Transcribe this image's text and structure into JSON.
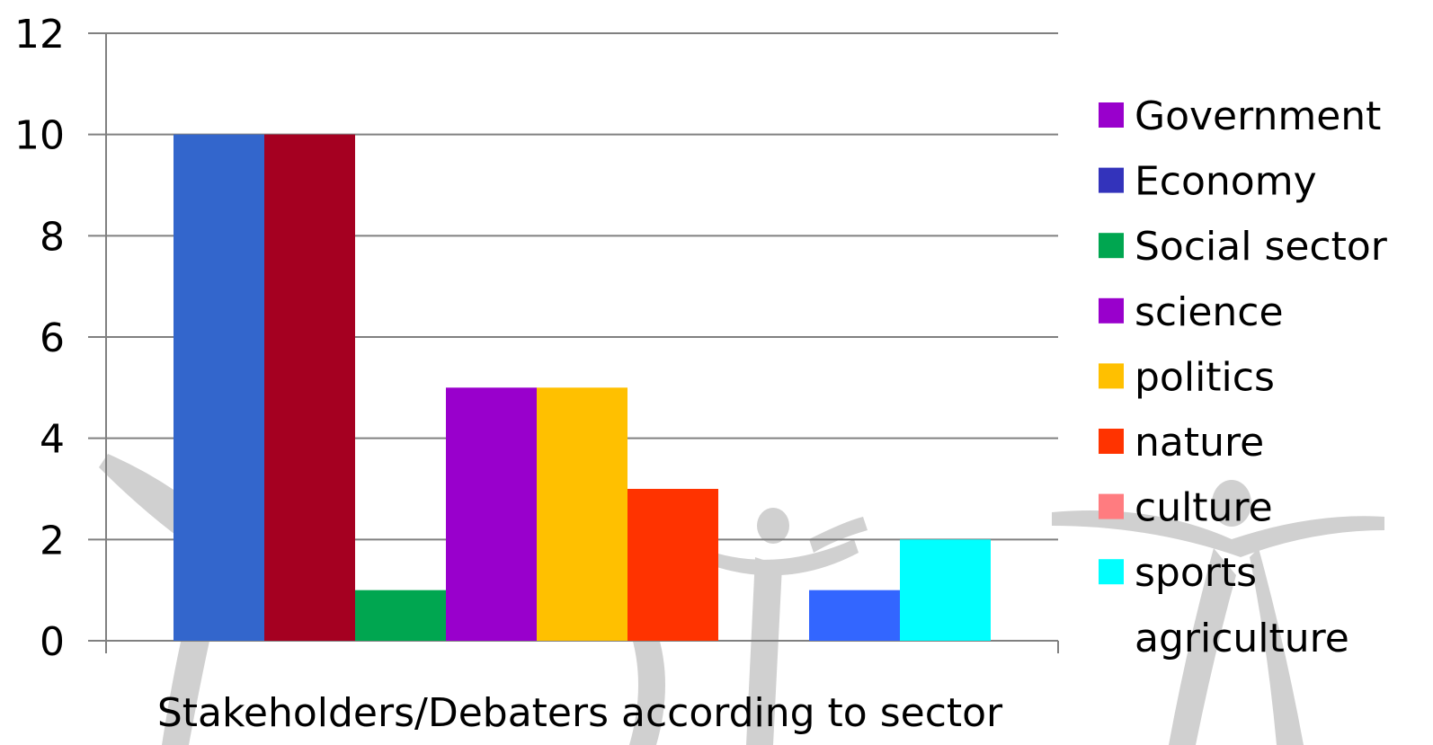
{
  "chart_data": {
    "type": "bar",
    "xlabel": "Stakeholders/Debaters according to sector",
    "ylabel": "",
    "ylim": [
      0,
      12
    ],
    "yticks": [
      0,
      2,
      4,
      6,
      8,
      10,
      12
    ],
    "grid": true,
    "legend_position": "right",
    "series": [
      {
        "name": "Government",
        "value": 10,
        "bar_color": "#3366CC",
        "legend_color": "#9900CC"
      },
      {
        "name": "Economy",
        "value": 10,
        "bar_color": "#A50021",
        "legend_color": "#3333BB"
      },
      {
        "name": "Social sector",
        "value": 1,
        "bar_color": "#00A650",
        "legend_color": "#00A650"
      },
      {
        "name": "science",
        "value": 5,
        "bar_color": "#9900CC",
        "legend_color": "#9900CC"
      },
      {
        "name": "politics",
        "value": 5,
        "bar_color": "#FFC000",
        "legend_color": "#FFC000"
      },
      {
        "name": "nature",
        "value": 3,
        "bar_color": "#FF3300",
        "legend_color": "#FF3300"
      },
      {
        "name": "culture",
        "value": 0,
        "bar_color": "#FF7C80",
        "legend_color": "#FF7C80"
      },
      {
        "name": "sports",
        "value": 1,
        "bar_color": "#3366FF",
        "legend_color": "#00FFFF"
      },
      {
        "name": "agriculture",
        "value": 2,
        "bar_color": "#00FFFF",
        "legend_color": "#FFFFFF"
      }
    ],
    "gridline_color": "#808080",
    "axis_color": "#808080"
  }
}
